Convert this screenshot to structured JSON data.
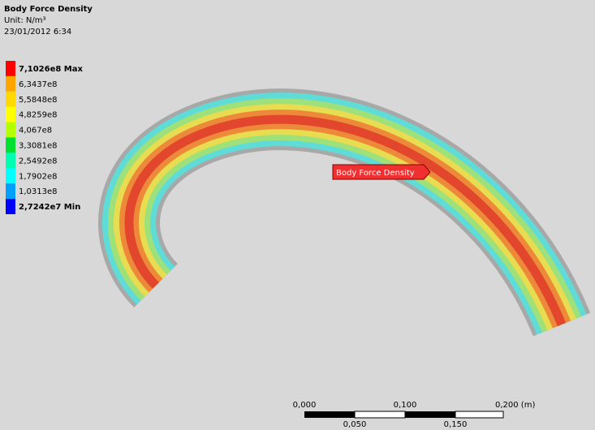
{
  "header": {
    "title": "Body Force Density",
    "unit": "Unit: N/m³",
    "timestamp": "23/01/2012 6:34"
  },
  "legend": {
    "labels": [
      "7,1026e8 Max",
      "6,3437e8",
      "5,5848e8",
      "4,8259e8",
      "4,067e8",
      "3,3081e8",
      "2,5492e8",
      "1,7902e8",
      "1,0313e8",
      "2,7242e7 Min"
    ],
    "colors": [
      "#ff0000",
      "#ffa500",
      "#ffd800",
      "#ffff00",
      "#b4ff00",
      "#00e030",
      "#00ffb0",
      "#00ffff",
      "#00a0ff",
      "#0000ff"
    ]
  },
  "probe": {
    "label": "Body Force Density"
  },
  "scale_bar": {
    "top_labels": [
      "0,000",
      "0,100",
      "0,200 (m)"
    ],
    "bottom_labels": [
      "0,050",
      "0,150"
    ]
  }
}
